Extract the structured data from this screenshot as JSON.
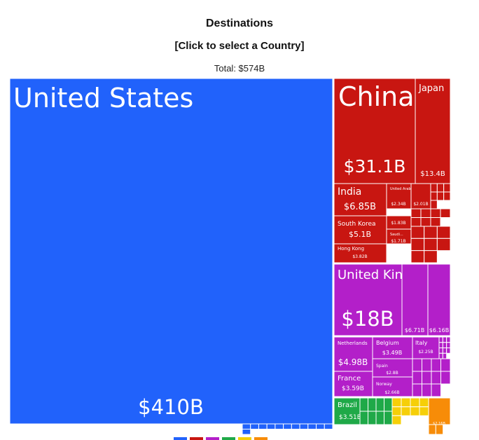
{
  "header": {
    "title": "Destinations",
    "subtitle": "[Click to select a Country]",
    "total": "Total: $574B"
  },
  "colors": {
    "north_america": "#2162fb",
    "asia": "#c81611",
    "europe": "#b31fc9",
    "south_america": "#1fa948",
    "africa": "#f6cf08",
    "oceania": "#f78c08",
    "border": "#ffffff"
  },
  "chart_data": {
    "type": "treemap",
    "title": "Destinations",
    "subtitle": "[Click to select a Country]",
    "total": "Total: $574B",
    "unit": "USD billions",
    "groups": [
      {
        "color_key": "north_america",
        "items": [
          {
            "name": "United States",
            "value": 410,
            "label": "$410B",
            "name_label": "United States"
          }
        ],
        "small_count": 12
      },
      {
        "color_key": "asia",
        "items": [
          {
            "name": "China",
            "value": 31.1,
            "label": "$31.1B",
            "name_label": "China"
          },
          {
            "name": "Japan",
            "value": 13.4,
            "label": "$13.4B",
            "name_label": "Japan"
          },
          {
            "name": "India",
            "value": 6.85,
            "label": "$6.85B",
            "name_label": "India"
          },
          {
            "name": "United Arab Emirates",
            "value": 2.34,
            "label": "$2.34B",
            "name_label": "United Arab..."
          },
          {
            "name": "",
            "value": 2.01,
            "label": "$2.01B",
            "name_label": ""
          },
          {
            "name": "South Korea",
            "value": 5.1,
            "label": "$5.1B",
            "name_label": "South Korea"
          },
          {
            "name": "",
            "value": 1.83,
            "label": "$1.83B",
            "name_label": ""
          },
          {
            "name": "Saudi Arabia",
            "value": 1.71,
            "label": "$1.71B",
            "name_label": "Saudi..."
          },
          {
            "name": "Hong Kong",
            "value": 3.82,
            "label": "$3.82B",
            "name_label": "Hong Kong"
          }
        ],
        "small_count": 22
      },
      {
        "color_key": "europe",
        "items": [
          {
            "name": "United Kingdom",
            "value": 18,
            "label": "$18B",
            "name_label": "United Kingdom"
          },
          {
            "name": "",
            "value": 6.71,
            "label": "$6.71B",
            "name_label": ""
          },
          {
            "name": "",
            "value": 6.16,
            "label": "$6.16B",
            "name_label": ""
          },
          {
            "name": "Netherlands",
            "value": 4.98,
            "label": "$4.98B",
            "name_label": "Netherlands"
          },
          {
            "name": "Belgium",
            "value": 3.49,
            "label": "$3.49B",
            "name_label": "Belgium"
          },
          {
            "name": "Italy",
            "value": 2.25,
            "label": "$2.25B",
            "name_label": "Italy"
          },
          {
            "name": "France",
            "value": 3.59,
            "label": "$3.59B",
            "name_label": "France"
          },
          {
            "name": "Spain",
            "value": 2.8,
            "label": "$2.8B",
            "name_label": "Spain"
          },
          {
            "name": "Norway",
            "value": 2.66,
            "label": "$2.66B",
            "name_label": "Norway"
          }
        ],
        "small_count": 22
      },
      {
        "color_key": "south_america",
        "items": [
          {
            "name": "Brazil",
            "value": 3.51,
            "label": "$3.51B",
            "name_label": "Brazil"
          }
        ],
        "small_count": 8
      },
      {
        "color_key": "africa",
        "items": [],
        "small_count": 9
      },
      {
        "color_key": "oceania",
        "items": [
          {
            "name": "",
            "value": 2.16,
            "label": "$2.16B",
            "name_label": ""
          }
        ],
        "small_count": 2
      }
    ],
    "legend": [
      "north_america",
      "asia",
      "europe",
      "south_america",
      "africa",
      "oceania"
    ]
  }
}
